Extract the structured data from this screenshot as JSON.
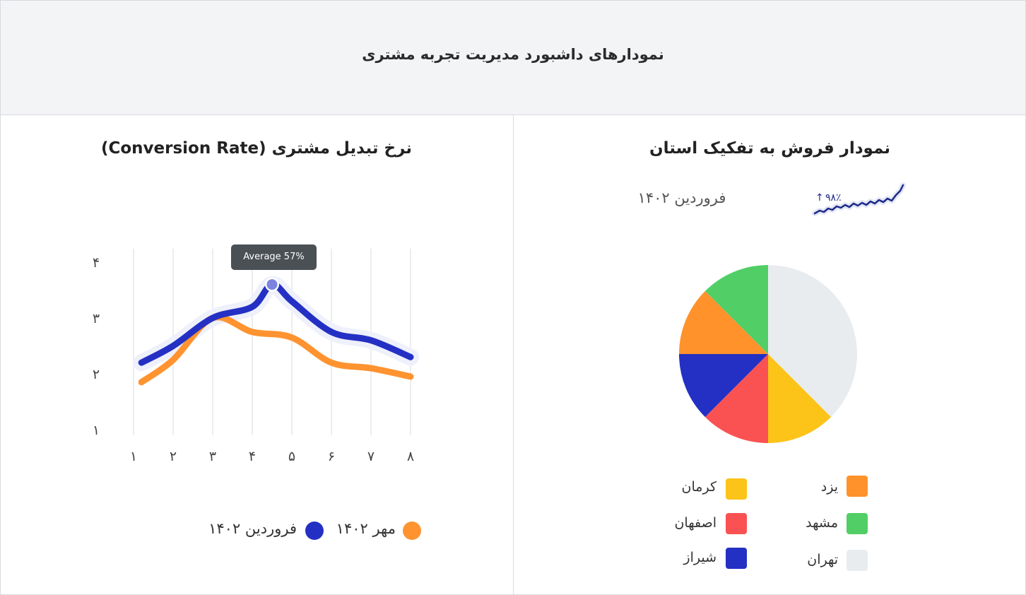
{
  "header": {
    "title": "نمودارهای داشبورد مدیریت تجربه مشتری"
  },
  "line_panel": {
    "title": "نرخ تبدیل مشتری (Conversion Rate)",
    "tooltip": "Average 57%",
    "legend": [
      {
        "label": "مهر ۱۴۰۲",
        "color": "#ff9330"
      },
      {
        "label": "فروردین ۱۴۰۲",
        "color": "#2430c4"
      }
    ]
  },
  "pie_panel": {
    "title": "نمودار فروش به تفکیک استان",
    "stat_label": "فروردین ۱۴۰۲",
    "stat_change": "۹۸٪",
    "stat_trend_icon": "arrow-up-icon",
    "legend": [
      {
        "label": "کرمان",
        "color": "#fcc419"
      },
      {
        "label": "یزد",
        "color": "#ff922b"
      },
      {
        "label": "اصفهان",
        "color": "#fa5252"
      },
      {
        "label": "مشهد",
        "color": "#51cf66"
      },
      {
        "label": "شیراز",
        "color": "#2430c4"
      },
      {
        "label": "تهران",
        "color": "#e9ecef"
      }
    ]
  },
  "chart_data": [
    {
      "type": "line",
      "title": "نرخ تبدیل مشتری (Conversion Rate)",
      "x": [
        "۱",
        "۲",
        "۳",
        "۴",
        "۵",
        "۶",
        "۷",
        "۸"
      ],
      "x_values": [
        1,
        2,
        3,
        4,
        5,
        6,
        7,
        8
      ],
      "y_ticks": [
        "۱",
        "۲",
        "۳",
        "۴"
      ],
      "y_tick_values": [
        1,
        2,
        3,
        4
      ],
      "ylim": [
        1,
        4
      ],
      "xlim": [
        1,
        8
      ],
      "grid": "vertical",
      "legend_position": "bottom",
      "series": [
        {
          "name": "مهر ۱۴۰۲",
          "color": "#ff9330",
          "x": [
            1.2,
            2.0,
            3.0,
            4.0,
            5.0,
            6.0,
            7.0,
            8.0
          ],
          "values": [
            1.85,
            2.25,
            3.0,
            2.75,
            2.65,
            2.2,
            2.1,
            1.95
          ]
        },
        {
          "name": "فروردین ۱۴۰۲",
          "color": "#2430c4",
          "x": [
            1.2,
            2.0,
            3.0,
            4.0,
            4.5,
            5.0,
            6.0,
            7.0,
            8.0
          ],
          "values": [
            2.2,
            2.5,
            3.0,
            3.2,
            3.6,
            3.3,
            2.75,
            2.6,
            2.3
          ]
        }
      ],
      "annotation": {
        "text": "Average 57%",
        "x": 4.5,
        "y": 3.6
      }
    },
    {
      "type": "pie",
      "title": "نمودار فروش به تفکیک استان",
      "slices": [
        {
          "label": "تهران",
          "value": 37.5,
          "color": "#e9ecef"
        },
        {
          "label": "کرمان",
          "value": 12.5,
          "color": "#fcc419"
        },
        {
          "label": "اصفهان",
          "value": 12.5,
          "color": "#fa5252"
        },
        {
          "label": "شیراز",
          "value": 12.5,
          "color": "#2430c4"
        },
        {
          "label": "یزد",
          "value": 12.5,
          "color": "#ff922b"
        },
        {
          "label": "مشهد",
          "value": 12.5,
          "color": "#51cf66"
        }
      ]
    }
  ]
}
